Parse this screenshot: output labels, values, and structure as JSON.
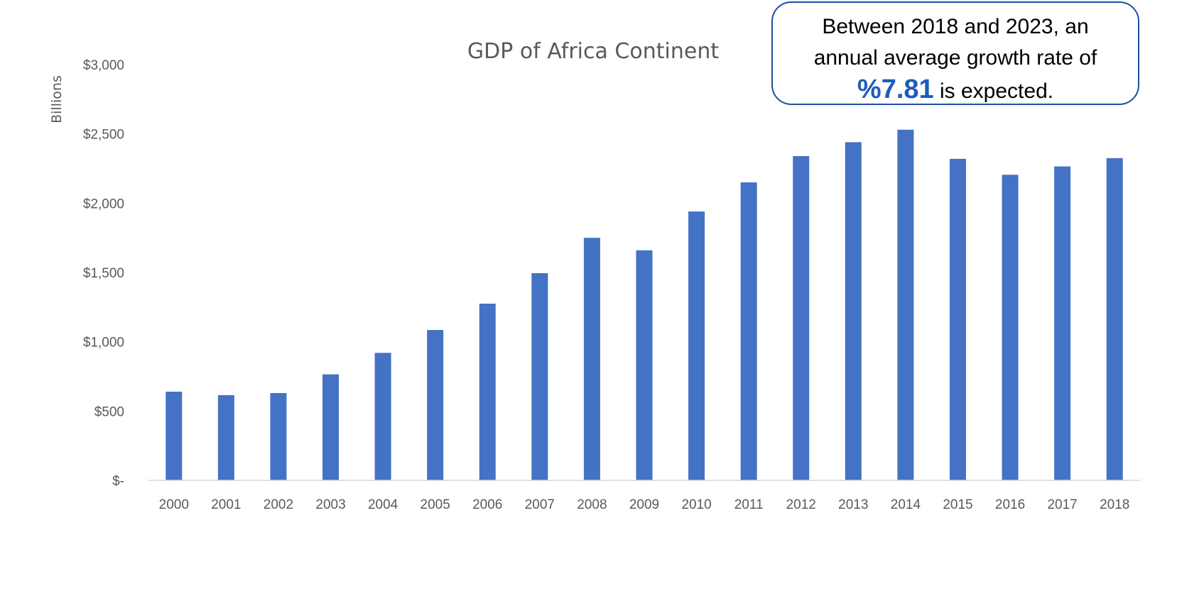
{
  "chart_data": {
    "type": "bar",
    "title": "GDP of Africa Continent",
    "xlabel": "",
    "ylabel": "Billions",
    "categories": [
      "2000",
      "2001",
      "2002",
      "2003",
      "2004",
      "2005",
      "2006",
      "2007",
      "2008",
      "2009",
      "2010",
      "2011",
      "2012",
      "2013",
      "2014",
      "2015",
      "2016",
      "2017",
      "2018"
    ],
    "values": [
      640,
      615,
      630,
      765,
      920,
      1085,
      1275,
      1495,
      1750,
      1660,
      1940,
      2150,
      2340,
      2440,
      2530,
      2320,
      2205,
      2265,
      2325
    ],
    "ylim": [
      0,
      3000
    ],
    "yticks": [
      {
        "value": 0,
        "label": "$-"
      },
      {
        "value": 500,
        "label": "$500"
      },
      {
        "value": 1000,
        "label": "$1,000"
      },
      {
        "value": 1500,
        "label": "$1,500"
      },
      {
        "value": 2000,
        "label": "$2,000"
      },
      {
        "value": 2500,
        "label": "$2,500"
      },
      {
        "value": 3000,
        "label": "$3,000"
      }
    ],
    "grid": false,
    "bar_color": "#4472c4"
  },
  "callout": {
    "line1": "Between 2018 and 2023, an",
    "line2": "annual average growth rate of",
    "highlight": "%7.81",
    "line3_suffix": " is expected."
  }
}
